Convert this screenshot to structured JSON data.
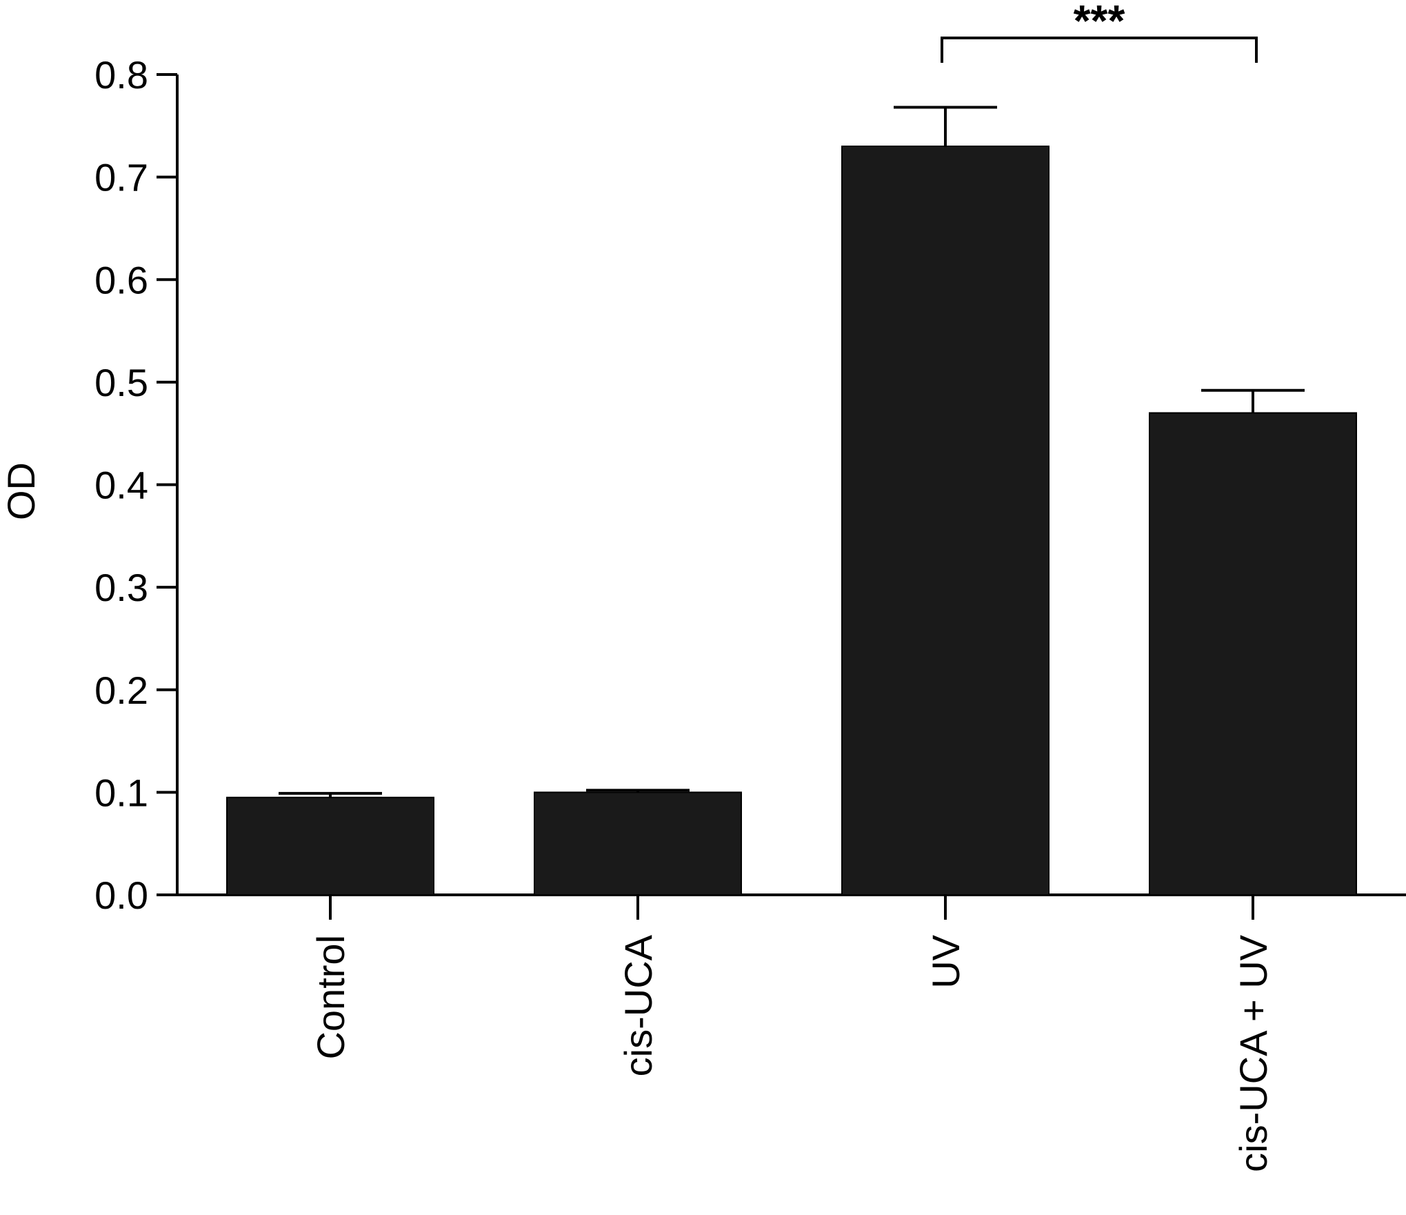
{
  "chart_data": {
    "type": "bar",
    "title": "",
    "xlabel": "",
    "ylabel": "OD",
    "ylim": [
      0,
      0.8
    ],
    "yticks": [
      "0.0",
      "0.1",
      "0.2",
      "0.3",
      "0.4",
      "0.5",
      "0.6",
      "0.7",
      "0.8"
    ],
    "categories": [
      "Control",
      "cis-UCA",
      "UV",
      "cis-UCA + UV"
    ],
    "values": [
      0.095,
      0.1,
      0.73,
      0.47
    ],
    "errors": [
      0.004,
      0.002,
      0.038,
      0.022
    ],
    "bar_color": "#1a1a1a",
    "grid": false,
    "legend": "none",
    "significance": {
      "from_category": "UV",
      "to_category": "cis-UCA + UV",
      "label": "***"
    }
  }
}
